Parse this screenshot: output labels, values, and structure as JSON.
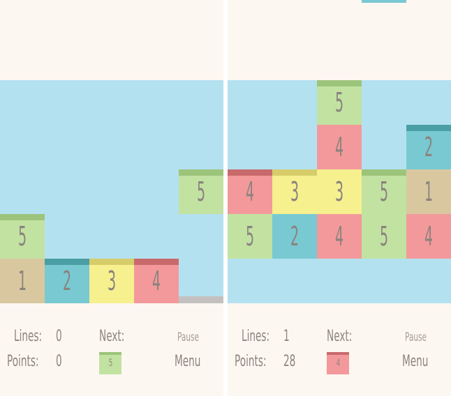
{
  "colors": {
    "sky": "#b4e1f0",
    "background": "#fdf7f1",
    "green": "#c2e2a2",
    "green_cap": "#9cc47a",
    "tan": "#d9c89f",
    "tan_cap": "#bfa977",
    "teal": "#78c9d2",
    "teal_cap": "#4a9fa4",
    "yellow": "#f6f08f",
    "yellow_cap": "#d6cd6a",
    "pink": "#f3999b",
    "pink_cap": "#c86a6c",
    "text": "#8b847f"
  },
  "screens": [
    {
      "hud": {
        "lines_label": "Lines:",
        "lines_value": "0",
        "points_label": "Points:",
        "points_value": "0",
        "next_label": "Next:",
        "next_value": "5",
        "pause_label": "Pause",
        "menu_label": "Menu"
      },
      "tiles": [
        {
          "col": 4,
          "row": 3,
          "value": "5",
          "color": "green",
          "cap": "green_cap"
        },
        {
          "col": 0,
          "row": 4,
          "value": "5",
          "color": "green",
          "cap": "green_cap"
        },
        {
          "col": 0,
          "row": 5,
          "value": "1",
          "color": "tan",
          "cap": null
        },
        {
          "col": 1,
          "row": 5,
          "value": "2",
          "color": "teal",
          "cap": "teal_cap"
        },
        {
          "col": 2,
          "row": 5,
          "value": "3",
          "color": "yellow",
          "cap": "yellow_cap"
        },
        {
          "col": 3,
          "row": 5,
          "value": "4",
          "color": "pink",
          "cap": "pink_cap"
        }
      ]
    },
    {
      "hud": {
        "lines_label": "Lines:",
        "lines_value": "1",
        "points_label": "Points:",
        "points_value": "28",
        "next_label": "Next:",
        "next_value": "4",
        "pause_label": "Pause",
        "menu_label": "Menu"
      },
      "tiles": [
        {
          "col": 2,
          "row": 1,
          "value": "5",
          "color": "green",
          "cap": "green_cap"
        },
        {
          "col": 2,
          "row": 2,
          "value": "4",
          "color": "pink",
          "cap": null
        },
        {
          "col": 4,
          "row": 2,
          "value": "2",
          "color": "teal",
          "cap": "teal_cap"
        },
        {
          "col": 0,
          "row": 3,
          "value": "4",
          "color": "pink",
          "cap": "pink_cap"
        },
        {
          "col": 1,
          "row": 3,
          "value": "3",
          "color": "yellow",
          "cap": "yellow_cap"
        },
        {
          "col": 2,
          "row": 3,
          "value": "3",
          "color": "yellow",
          "cap": null
        },
        {
          "col": 3,
          "row": 3,
          "value": "5",
          "color": "green",
          "cap": "green_cap"
        },
        {
          "col": 4,
          "row": 3,
          "value": "1",
          "color": "tan",
          "cap": null
        },
        {
          "col": 0,
          "row": 4,
          "value": "5",
          "color": "green",
          "cap": null
        },
        {
          "col": 1,
          "row": 4,
          "value": "2",
          "color": "teal",
          "cap": null
        },
        {
          "col": 2,
          "row": 4,
          "value": "4",
          "color": "pink",
          "cap": null
        },
        {
          "col": 3,
          "row": 4,
          "value": "5",
          "color": "green",
          "cap": null
        },
        {
          "col": 4,
          "row": 4,
          "value": "4",
          "color": "pink",
          "cap": null
        }
      ]
    }
  ]
}
